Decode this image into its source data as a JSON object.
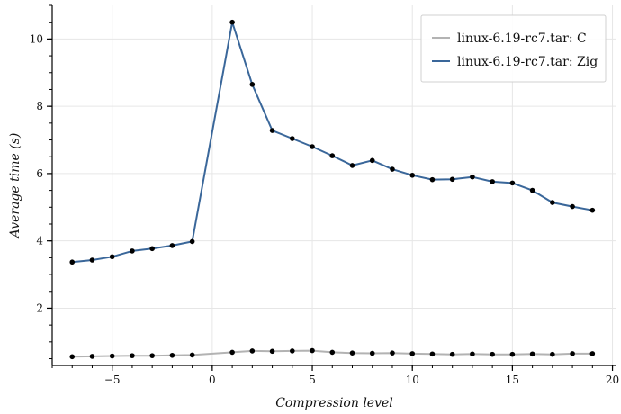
{
  "chart_data": {
    "type": "line",
    "xlabel": "Compression level",
    "ylabel": "Average time (s)",
    "xlim": [
      -8,
      20.2
    ],
    "ylim": [
      0.3,
      11.0
    ],
    "xticks": [
      -5,
      0,
      5,
      10,
      15,
      20
    ],
    "yticks": [
      2,
      4,
      6,
      8,
      10
    ],
    "tick_labels_x": [
      "−5",
      "0",
      "5",
      "10",
      "15",
      "20"
    ],
    "tick_labels_y": [
      "2",
      "4",
      "6",
      "8",
      "10"
    ],
    "grid": true,
    "legend_position": "top-right",
    "series": [
      {
        "name": "linux-6.19-rc7.tar: C",
        "color": "#b3b3b3",
        "x": [
          -7,
          -6,
          -5,
          -4,
          -3,
          -2,
          -1,
          1,
          2,
          3,
          4,
          5,
          6,
          7,
          8,
          9,
          10,
          11,
          12,
          13,
          14,
          15,
          16,
          17,
          18,
          19
        ],
        "y": [
          0.56,
          0.57,
          0.58,
          0.59,
          0.59,
          0.6,
          0.61,
          0.69,
          0.73,
          0.72,
          0.73,
          0.74,
          0.69,
          0.67,
          0.66,
          0.67,
          0.65,
          0.64,
          0.63,
          0.64,
          0.63,
          0.63,
          0.64,
          0.63,
          0.65,
          0.65
        ]
      },
      {
        "name": "linux-6.19-rc7.tar: Zig",
        "color": "#3a679a",
        "x": [
          -7,
          -6,
          -5,
          -4,
          -3,
          -2,
          -1,
          1,
          2,
          3,
          4,
          5,
          6,
          7,
          8,
          9,
          10,
          11,
          12,
          13,
          14,
          15,
          16,
          17,
          18,
          19
        ],
        "y": [
          3.37,
          3.43,
          3.53,
          3.7,
          3.77,
          3.86,
          3.98,
          10.5,
          8.65,
          7.28,
          7.04,
          6.8,
          6.53,
          6.24,
          6.39,
          6.13,
          5.95,
          5.82,
          5.83,
          5.9,
          5.76,
          5.72,
          5.5,
          5.14,
          5.02,
          4.91
        ]
      }
    ]
  }
}
